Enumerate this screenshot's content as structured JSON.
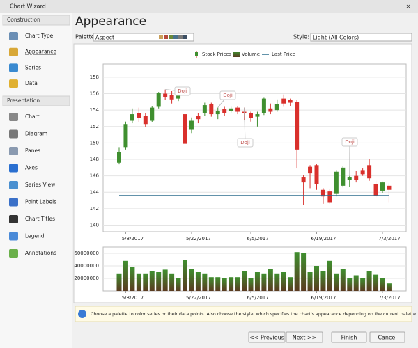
{
  "window": {
    "title": "Chart Wizard"
  },
  "sidebar": {
    "groups": [
      {
        "title": "Construction",
        "items": [
          "Chart Type",
          "Appearance",
          "Series",
          "Data"
        ]
      },
      {
        "title": "Presentation",
        "items": [
          "Chart",
          "Diagram",
          "Panes",
          "Axes",
          "Series View",
          "Point Labels",
          "Chart Titles",
          "Legend",
          "Annotations"
        ]
      }
    ]
  },
  "header": {
    "title": "Appearance"
  },
  "toolbar": {
    "palette_label": "Palette:",
    "palette_value": "Aspect",
    "style_label": "Style:",
    "style_value": "Light (All Colors)"
  },
  "chart_data": {
    "type": "candlestick",
    "categories": [
      null,
      "5/8/2017",
      null,
      null,
      null,
      null,
      null,
      null,
      null,
      null,
      null,
      "5/22/2017",
      null,
      null,
      null,
      null,
      null,
      null,
      null,
      null,
      "6/5/2017",
      null,
      null,
      null,
      null,
      null,
      null,
      null,
      null,
      null,
      "6/19/2017",
      null,
      null,
      null,
      null,
      null,
      null,
      null,
      null,
      null,
      "7/3/2017",
      null
    ],
    "series": [
      {
        "name": "Stock Prices",
        "rising_color": "#3f8f2f",
        "falling_color": "#d9302c",
        "open": [
          147.6,
          149.5,
          152.7,
          153.6,
          153.3,
          152.7,
          154.4,
          156.0,
          155.8,
          155.4,
          153.5,
          151.6,
          153.3,
          153.6,
          154.7,
          153.5,
          154.1,
          153.9,
          154.3,
          153.8,
          153.6,
          153.2,
          153.6,
          154.2,
          154.0,
          155.4,
          155.2,
          155.0,
          145.8,
          147.1,
          147.3,
          144.3,
          144.1,
          143.8,
          144.8,
          145.5,
          146.0,
          146.7,
          147.3,
          145.0,
          144.2,
          144.8
        ],
        "high": [
          149.5,
          152.6,
          154.2,
          154.3,
          153.6,
          154.5,
          156.2,
          156.5,
          156.3,
          156.0,
          153.8,
          153.1,
          153.6,
          154.9,
          154.9,
          154.3,
          154.4,
          154.4,
          154.5,
          154.3,
          153.8,
          153.8,
          155.5,
          154.8,
          155.3,
          155.9,
          155.4,
          155.2,
          146.1,
          147.3,
          147.4,
          144.5,
          144.4,
          146.7,
          147.2,
          146.0,
          146.6,
          146.9,
          148.0,
          145.4,
          145.3,
          145.1
        ],
        "low": [
          147.4,
          149.2,
          152.4,
          152.5,
          151.9,
          152.5,
          154.2,
          155.2,
          154.8,
          155.1,
          149.5,
          151.2,
          152.4,
          153.3,
          153.2,
          152.9,
          153.3,
          153.7,
          153.5,
          152.8,
          152.6,
          152.0,
          153.4,
          153.5,
          153.8,
          154.4,
          154.5,
          146.9,
          142.5,
          144.5,
          144.3,
          142.6,
          142.6,
          143.5,
          144.6,
          144.7,
          145.2,
          146.0,
          145.4,
          143.4,
          143.9,
          142.8
        ],
        "close": [
          148.9,
          152.3,
          153.5,
          153.0,
          152.3,
          154.3,
          156.1,
          155.6,
          155.3,
          155.8,
          149.9,
          152.7,
          152.9,
          154.6,
          153.5,
          153.9,
          153.6,
          154.2,
          153.8,
          153.6,
          153.0,
          153.5,
          155.4,
          153.8,
          154.7,
          154.8,
          154.9,
          149.2,
          145.2,
          146.3,
          145.0,
          143.5,
          142.8,
          146.5,
          147.0,
          145.8,
          145.5,
          146.2,
          145.7,
          143.6,
          145.2,
          144.3
        ]
      },
      {
        "name": "Volume",
        "color": "#3f8f2f",
        "values": [
          28000000,
          48000000,
          38000000,
          28000000,
          28000000,
          32000000,
          30000000,
          34000000,
          28000000,
          20000000,
          50000000,
          35000000,
          30000000,
          28000000,
          22000000,
          22000000,
          20000000,
          22000000,
          22000000,
          32000000,
          20000000,
          30000000,
          28000000,
          35000000,
          28000000,
          30000000,
          22000000,
          62000000,
          60000000,
          30000000,
          40000000,
          32000000,
          48000000,
          28000000,
          35000000,
          20000000,
          25000000,
          20000000,
          32000000,
          26000000,
          20000000,
          12000000
        ]
      },
      {
        "name": "Last Price",
        "color": "#2e6f8e",
        "value": 143.6
      }
    ],
    "ylim": [
      139.2,
      159.6
    ],
    "yticks": [
      140,
      142,
      144,
      146,
      148,
      150,
      152,
      154,
      156,
      158
    ],
    "y2lim": [
      0,
      70000000
    ],
    "y2ticks": [
      20000000,
      40000000,
      60000000
    ],
    "annotations": [
      "Doji",
      "Doji",
      "Doji",
      "Doji"
    ],
    "grid": true
  },
  "hint": "Choose a palette to color series or their data points. Also choose the style, which specifies the chart's appearance depending on the current palette.",
  "buttons": [
    "<< Previous",
    "Next >>",
    "Finish",
    "Cancel"
  ]
}
